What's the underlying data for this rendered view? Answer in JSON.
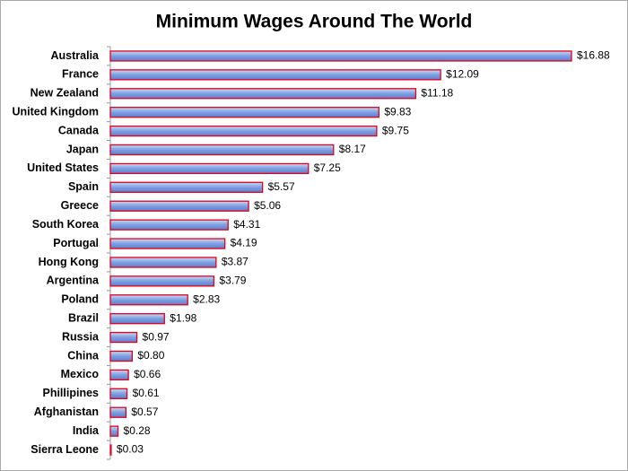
{
  "chart_data": {
    "type": "barh",
    "title": "Minimum Wages Around The World",
    "categories": [
      "Australia",
      "France",
      "New Zealand",
      "United Kingdom",
      "Canada",
      "Japan",
      "United States",
      "Spain",
      "Greece",
      "South Korea",
      "Portugal",
      "Hong Kong",
      "Argentina",
      "Poland",
      "Brazil",
      "Russia",
      "China",
      "Mexico",
      "Phillipines",
      "Afghanistan",
      "India",
      "Sierra Leone"
    ],
    "values": [
      16.88,
      12.09,
      11.18,
      9.83,
      9.75,
      8.17,
      7.25,
      5.57,
      5.06,
      4.31,
      4.19,
      3.87,
      3.79,
      2.83,
      1.98,
      0.97,
      0.8,
      0.66,
      0.61,
      0.57,
      0.28,
      0.03
    ],
    "value_labels": [
      "$16.88",
      "$12.09",
      "$11.18",
      "$9.83",
      "$9.75",
      "$8.17",
      "$7.25",
      "$5.57",
      "$5.06",
      "$4.31",
      "$4.19",
      "$3.87",
      "$3.79",
      "$2.83",
      "$1.98",
      "$0.97",
      "$0.80",
      "$0.66",
      "$0.61",
      "$0.57",
      "$0.28",
      "$0.03"
    ],
    "color": "#7f9fe0",
    "edge_color": "#e3001b"
  }
}
